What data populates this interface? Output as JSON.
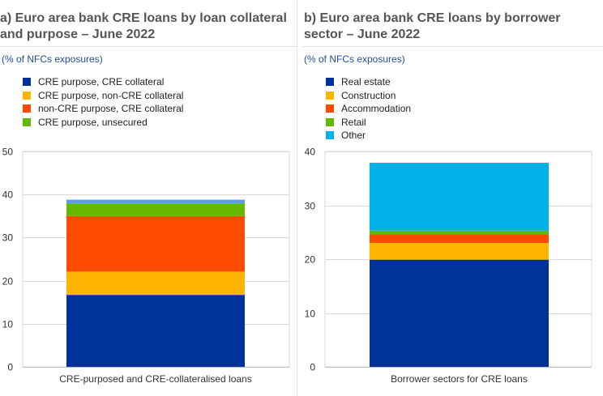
{
  "panels": [
    {
      "title": "a) Euro area bank CRE loans by loan collateral and purpose – June 2022",
      "subtitle": "(% of NFCs exposures)"
    },
    {
      "title": "b) Euro area bank CRE loans by borrower sector – June 2022",
      "subtitle": "(% of NFCs exposures)"
    }
  ],
  "chart_data": [
    {
      "type": "bar",
      "stacked": true,
      "categories": [
        "CRE-purposed and CRE-collateralised loans"
      ],
      "ylim": [
        0,
        50
      ],
      "yticks": [
        0,
        10,
        20,
        30,
        40,
        50
      ],
      "grid": true,
      "legend_position": "top-left",
      "series": [
        {
          "name": "CRE purpose, CRE collateral",
          "color": "#003299",
          "values": [
            16.7
          ]
        },
        {
          "name": "CRE purpose, non-CRE collateral",
          "color": "#ffb400",
          "values": [
            5.4
          ]
        },
        {
          "name": "non-CRE purpose, CRE collateral",
          "color": "#ff4b00",
          "values": [
            12.9
          ]
        },
        {
          "name": "CRE purpose, unsecured",
          "color": "#65b800",
          "values": [
            2.8
          ]
        },
        {
          "color": "#5c9be6",
          "values": [
            1.0
          ]
        }
      ]
    },
    {
      "type": "bar",
      "stacked": true,
      "categories": [
        "Borrower sectors for CRE loans"
      ],
      "ylim": [
        0,
        40
      ],
      "yticks": [
        0,
        10,
        20,
        30,
        40
      ],
      "grid": true,
      "legend_position": "top-left",
      "series": [
        {
          "name": "Real estate",
          "color": "#003299",
          "values": [
            19.9
          ]
        },
        {
          "name": "Construction",
          "color": "#ffb400",
          "values": [
            3.1
          ]
        },
        {
          "name": "Accommodation",
          "color": "#ff4b00",
          "values": [
            1.6
          ]
        },
        {
          "name": "Retail",
          "color": "#65b800",
          "values": [
            0.7
          ]
        },
        {
          "name": "Other",
          "color": "#00b1ea",
          "values": [
            12.6
          ]
        }
      ]
    }
  ]
}
